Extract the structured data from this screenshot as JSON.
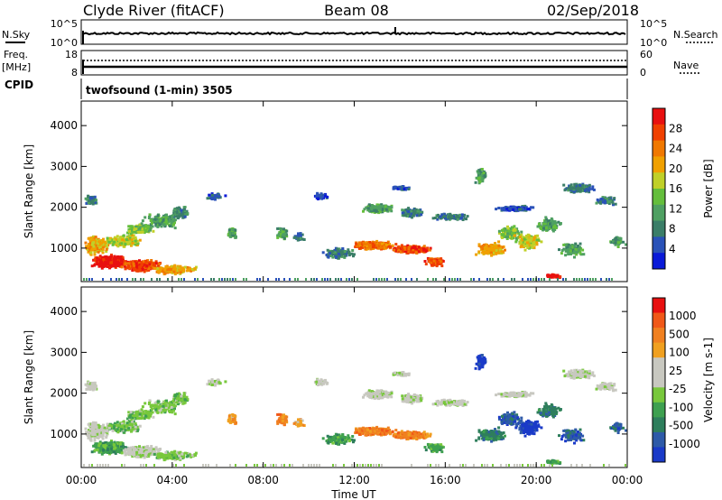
{
  "header": {
    "station": "Clyde River (fitACF)",
    "beam": "Beam 08",
    "date": "02/Sep/2018"
  },
  "nsky_panel": {
    "left_label": "N.Sky",
    "left_ticks": [
      "10^5",
      "10^0"
    ],
    "right_ticks": [
      "10^5",
      "10^0"
    ],
    "right_label": "N.Search"
  },
  "freq_panel": {
    "left_label_1": "Freq.",
    "left_label_2": "[MHz]",
    "left_ticks": [
      "18",
      "8"
    ],
    "right_ticks": [
      "60",
      "0"
    ],
    "right_label": "Nave"
  },
  "cpid": {
    "label": "CPID",
    "program": "twofsound (1-min) 3505"
  },
  "chart_data": [
    {
      "type": "heatmap",
      "name": "power",
      "ylabel": "Slant Range [km]",
      "xlabel": "",
      "y_ticks": [
        "1000",
        "2000",
        "3000",
        "4000"
      ],
      "ylim": [
        180,
        4600
      ],
      "colorbar_label": "Power [dB]",
      "colorbar_ticks": [
        "4",
        "8",
        "12",
        "16",
        "20",
        "24",
        "28"
      ],
      "colorbar_colors": [
        "#0a1ad8",
        "#2a52b8",
        "#3b7e68",
        "#4fa062",
        "#64be3c",
        "#c0d028",
        "#f0a000",
        "#f07800",
        "#f04000",
        "#e81010"
      ]
    },
    {
      "type": "heatmap",
      "name": "velocity",
      "ylabel": "Slant Range [km]",
      "xlabel": "Time UT",
      "x_ticks": [
        "00:00",
        "04:00",
        "08:00",
        "12:00",
        "16:00",
        "20:00",
        "00:00"
      ],
      "y_ticks": [
        "1000",
        "2000",
        "3000",
        "4000"
      ],
      "ylim": [
        180,
        4600
      ],
      "colorbar_label": "Velocity [m s-1]",
      "colorbar_ticks": [
        "1000",
        "500",
        "100",
        "25",
        "-25",
        "-100",
        "-500",
        "-1000"
      ],
      "colorbar_colors": [
        "#1a3ac8",
        "#2e5aa8",
        "#2e7e5c",
        "#3ea050",
        "#78c83c",
        "#c8c8c0",
        "#c8c8c0",
        "#f0a020",
        "#f08020",
        "#f05818",
        "#e81010"
      ]
    }
  ]
}
